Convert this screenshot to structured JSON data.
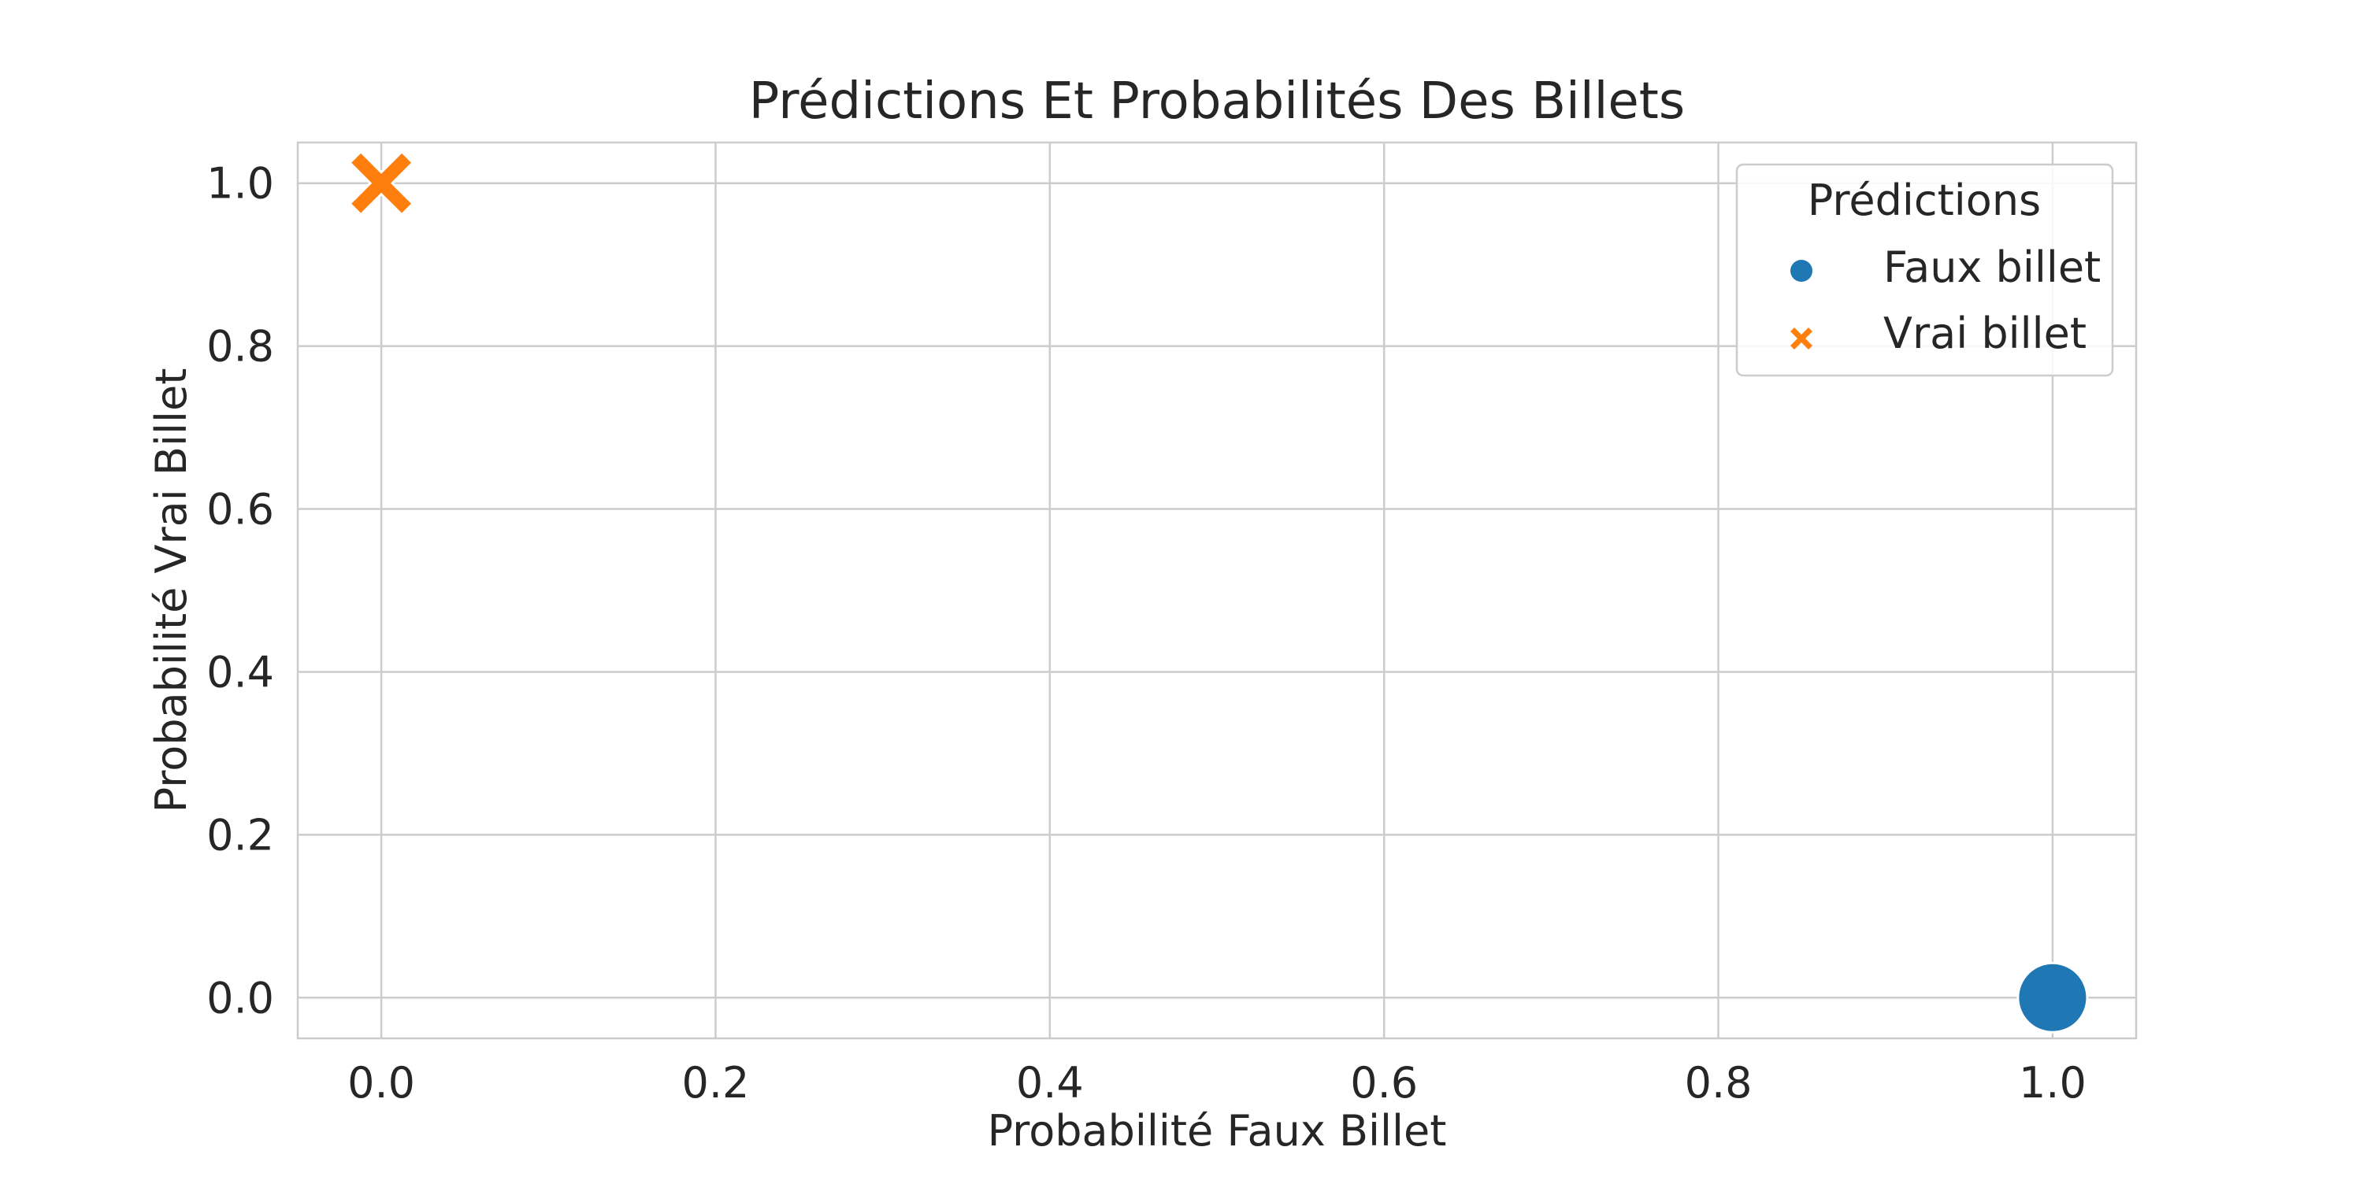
{
  "chart_data": {
    "type": "scatter",
    "title": "Prédictions Et Probabilités Des Billets",
    "xlabel": "Probabilité Faux Billet",
    "ylabel": "Probabilité Vrai Billet",
    "xlim": [
      -0.05,
      1.05
    ],
    "ylim": [
      -0.05,
      1.05
    ],
    "xticks": [
      "0.0",
      "0.2",
      "0.4",
      "0.6",
      "0.8",
      "1.0"
    ],
    "yticks": [
      "0.0",
      "0.2",
      "0.4",
      "0.6",
      "0.8",
      "1.0"
    ],
    "grid": true,
    "legend": {
      "title": "Prédictions",
      "placement": "top-right"
    },
    "series": [
      {
        "name": "Faux billet",
        "marker": "circle",
        "color": "#1f77b4",
        "points": [
          {
            "x": 1.0,
            "y": 0.0
          }
        ]
      },
      {
        "name": "Vrai billet",
        "marker": "x",
        "color": "#ff7f0e",
        "points": [
          {
            "x": 0.0,
            "y": 1.0
          }
        ]
      }
    ]
  }
}
